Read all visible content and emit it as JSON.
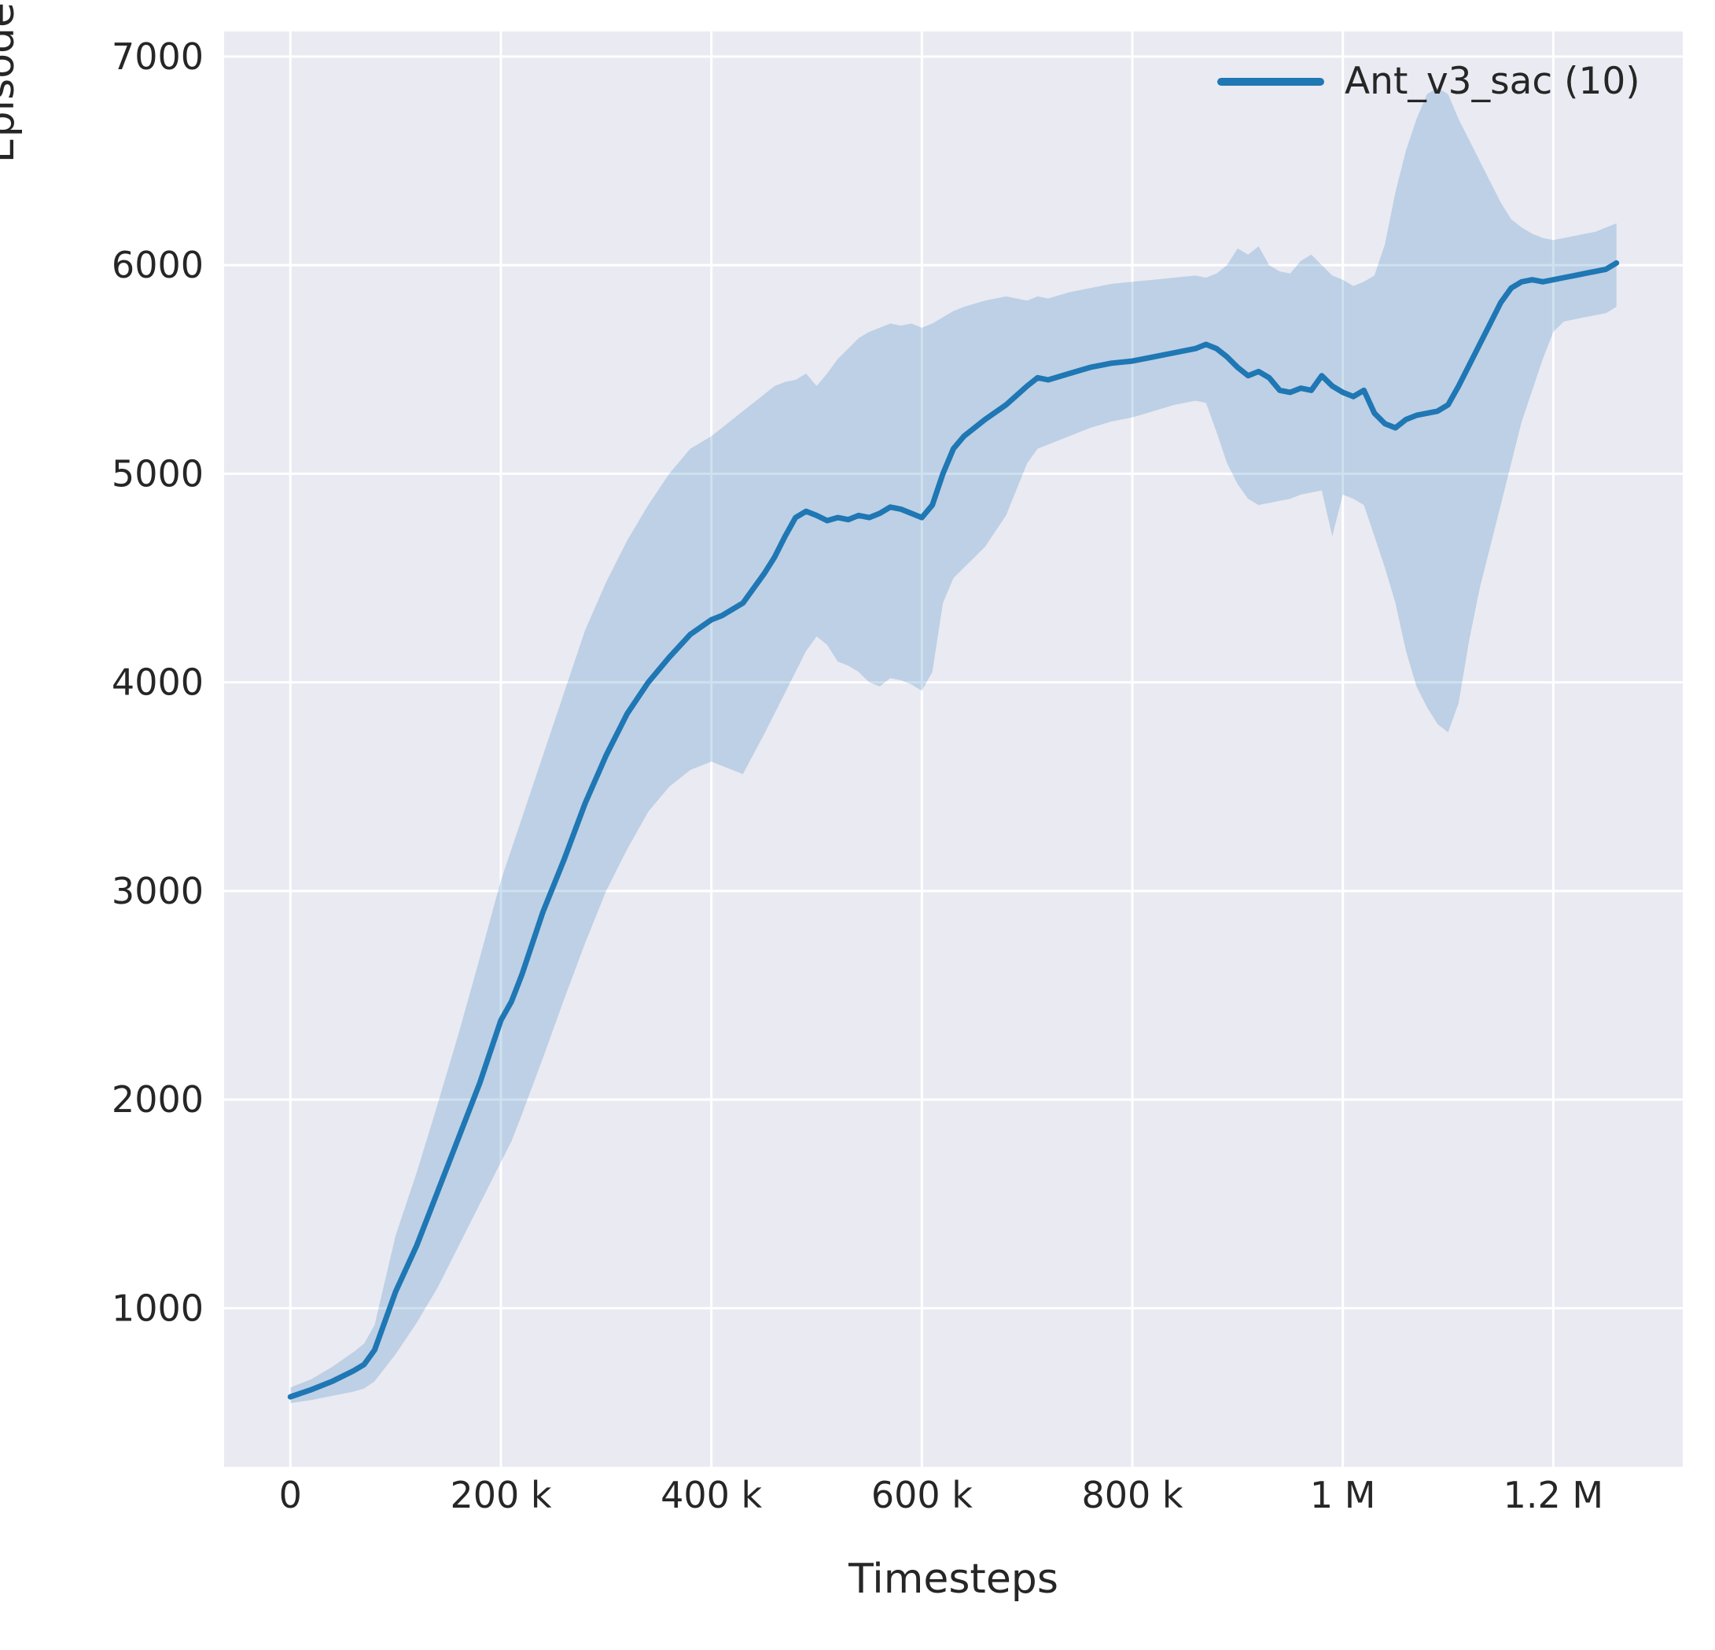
{
  "figure": {
    "background": "#ffffff",
    "axes_background": "#eaeaf2",
    "grid_color": "#ffffff",
    "text_color": "#262626"
  },
  "legend": {
    "label": "Ant_v3_sac (10)",
    "line_color": "#1f77b4"
  },
  "chart_data": {
    "type": "line",
    "title": "",
    "xlabel": "Timesteps",
    "ylabel": "Episode Reward",
    "legend_position": "upper right",
    "grid": true,
    "xlim": [
      -63000,
      1323000
    ],
    "ylim": [
      240,
      7120
    ],
    "x_tick_values": [
      0,
      200000,
      400000,
      600000,
      800000,
      1000000,
      1200000
    ],
    "x_tick_labels": [
      "0",
      "200 k",
      "400 k",
      "600 k",
      "800 k",
      "1 M",
      "1.2 M"
    ],
    "y_tick_values": [
      1000,
      2000,
      3000,
      4000,
      5000,
      6000,
      7000
    ],
    "y_tick_labels": [
      "1000",
      "2000",
      "3000",
      "4000",
      "5000",
      "6000",
      "7000"
    ],
    "x": [
      0,
      20000,
      40000,
      60000,
      70000,
      80000,
      100000,
      120000,
      140000,
      160000,
      180000,
      200000,
      210000,
      220000,
      240000,
      260000,
      280000,
      300000,
      320000,
      340000,
      360000,
      380000,
      400000,
      410000,
      430000,
      450000,
      460000,
      470000,
      480000,
      490000,
      500000,
      510000,
      520000,
      530000,
      540000,
      550000,
      560000,
      570000,
      580000,
      590000,
      600000,
      610000,
      620000,
      630000,
      640000,
      660000,
      680000,
      700000,
      710000,
      720000,
      740000,
      760000,
      780000,
      800000,
      820000,
      840000,
      860000,
      870000,
      880000,
      890000,
      900000,
      910000,
      920000,
      930000,
      940000,
      950000,
      960000,
      970000,
      980000,
      990000,
      1000000,
      1010000,
      1020000,
      1030000,
      1040000,
      1050000,
      1060000,
      1070000,
      1080000,
      1090000,
      1100000,
      1110000,
      1120000,
      1130000,
      1140000,
      1150000,
      1160000,
      1170000,
      1180000,
      1190000,
      1200000,
      1210000,
      1220000,
      1230000,
      1240000,
      1250000,
      1260000
    ],
    "series": [
      {
        "name": "Ant_v3_sac (10)",
        "color": "#1f77b4",
        "band_opacity": 0.22,
        "mean": [
          575,
          610,
          650,
          700,
          730,
          800,
          1080,
          1300,
          1560,
          1820,
          2080,
          2380,
          2470,
          2600,
          2900,
          3150,
          3420,
          3650,
          3850,
          4000,
          4120,
          4230,
          4300,
          4320,
          4380,
          4520,
          4600,
          4700,
          4790,
          4820,
          4800,
          4775,
          4790,
          4780,
          4800,
          4790,
          4810,
          4840,
          4830,
          4810,
          4790,
          4850,
          5000,
          5120,
          5180,
          5260,
          5330,
          5420,
          5460,
          5450,
          5480,
          5510,
          5530,
          5540,
          5560,
          5580,
          5600,
          5620,
          5600,
          5560,
          5510,
          5470,
          5490,
          5460,
          5400,
          5390,
          5410,
          5400,
          5470,
          5420,
          5390,
          5370,
          5400,
          5290,
          5240,
          5220,
          5260,
          5280,
          5290,
          5300,
          5330,
          5420,
          5520,
          5620,
          5720,
          5820,
          5890,
          5920,
          5930,
          5920,
          5930,
          5940,
          5950,
          5960,
          5970,
          5980,
          6010
        ],
        "band_lower": [
          545,
          560,
          580,
          600,
          615,
          650,
          780,
          930,
          1100,
          1300,
          1500,
          1700,
          1800,
          1930,
          2200,
          2480,
          2750,
          3000,
          3200,
          3380,
          3500,
          3580,
          3620,
          3600,
          3560,
          3750,
          3850,
          3950,
          4050,
          4150,
          4220,
          4180,
          4100,
          4080,
          4050,
          4000,
          3980,
          4020,
          4010,
          3990,
          3960,
          4050,
          4380,
          4500,
          4550,
          4650,
          4800,
          5050,
          5120,
          5140,
          5180,
          5220,
          5250,
          5270,
          5300,
          5330,
          5350,
          5340,
          5200,
          5050,
          4950,
          4880,
          4850,
          4860,
          4870,
          4880,
          4900,
          4910,
          4920,
          4700,
          4900,
          4880,
          4850,
          4700,
          4550,
          4380,
          4150,
          3980,
          3880,
          3800,
          3760,
          3900,
          4200,
          4450,
          4650,
          4850,
          5050,
          5250,
          5400,
          5550,
          5680,
          5730,
          5740,
          5750,
          5760,
          5770,
          5800
        ],
        "band_upper": [
          620,
          660,
          720,
          790,
          830,
          920,
          1350,
          1650,
          1980,
          2320,
          2680,
          3050,
          3200,
          3350,
          3650,
          3950,
          4250,
          4480,
          4680,
          4850,
          5000,
          5120,
          5180,
          5220,
          5300,
          5380,
          5420,
          5440,
          5450,
          5480,
          5420,
          5480,
          5550,
          5600,
          5650,
          5680,
          5700,
          5720,
          5710,
          5720,
          5700,
          5720,
          5750,
          5780,
          5800,
          5830,
          5850,
          5830,
          5850,
          5840,
          5870,
          5890,
          5910,
          5920,
          5930,
          5940,
          5950,
          5940,
          5960,
          6000,
          6080,
          6050,
          6090,
          6000,
          5970,
          5960,
          6020,
          6050,
          6000,
          5950,
          5930,
          5900,
          5920,
          5950,
          6100,
          6350,
          6550,
          6700,
          6820,
          6850,
          6820,
          6700,
          6600,
          6500,
          6400,
          6300,
          6220,
          6180,
          6150,
          6130,
          6120,
          6130,
          6140,
          6150,
          6160,
          6180,
          6200
        ]
      }
    ]
  }
}
